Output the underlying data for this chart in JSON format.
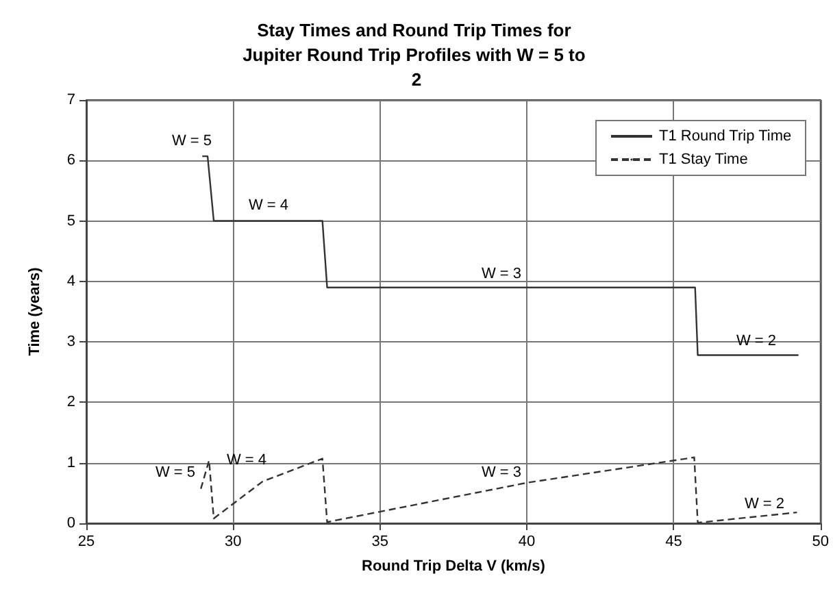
{
  "chart_data": {
    "type": "line",
    "title": "Stay Times and Round Trip Times for Jupiter Round Trip Profiles with W = 5 to 2",
    "xlabel": "Round Trip Delta V (km/s)",
    "ylabel": "Time (years)",
    "series": [
      {
        "name": "T1 Round Trip Time",
        "color": "#333333",
        "line_style": "solid",
        "x": [
          28.95,
          29.13,
          29.34,
          33.04,
          33.2,
          45.73,
          45.82,
          49.25
        ],
        "values": [
          6.07,
          6.07,
          5.0,
          5.0,
          3.9,
          3.9,
          2.78,
          2.78
        ]
      },
      {
        "name": "T1 Stay Time",
        "color": "#333333",
        "line_style": "dashed",
        "x": [
          28.9,
          29.18,
          29.34,
          31.0,
          33.04,
          33.2,
          40.0,
          45.7,
          45.82,
          49.2
        ],
        "values": [
          0.57,
          1.04,
          0.08,
          0.69,
          1.07,
          0.02,
          0.67,
          1.09,
          0.01,
          0.18
        ]
      }
    ],
    "annotations": [
      "W = 5",
      "W = 4",
      "W = 3",
      "W = 2",
      "W = 5",
      "W = 4",
      "W = 3",
      "W = 2"
    ],
    "xlim": [
      25,
      50
    ],
    "xticks": [
      25,
      30,
      35,
      40,
      45,
      50
    ],
    "ylim": [
      0,
      7
    ],
    "yticks": [
      0,
      1,
      2,
      3,
      4,
      5,
      6,
      7
    ],
    "grid": true,
    "legend": "top right",
    "marker": "none"
  }
}
